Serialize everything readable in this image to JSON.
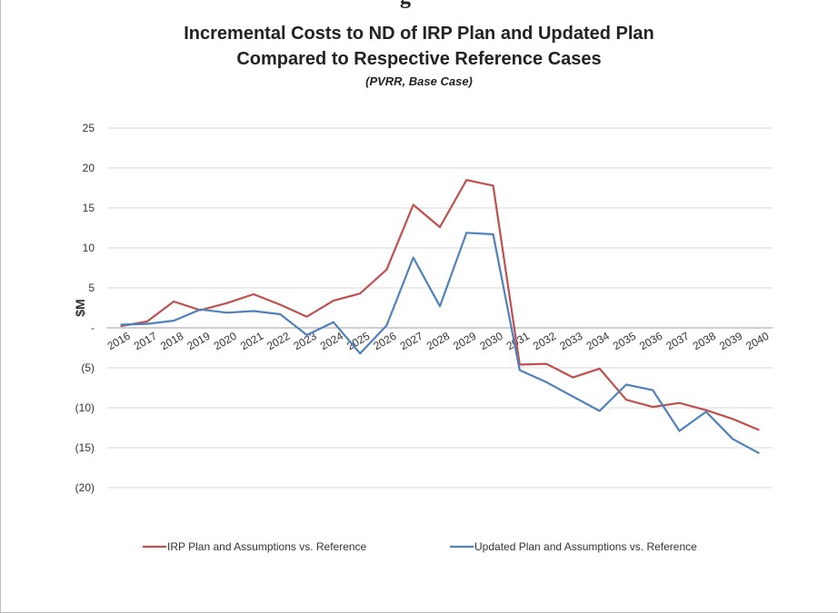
{
  "page": {
    "top_cutoff_text": "g"
  },
  "chart_data": {
    "type": "line",
    "title": "Incremental Costs to ND of IRP Plan and Updated Plan",
    "title_line2": "Compared to Respective Reference Cases",
    "subtitle": "(PVRR, Base Case)",
    "xlabel": "",
    "ylabel": "$M",
    "ylim": [
      -20,
      25
    ],
    "yticks": [
      25,
      20,
      15,
      10,
      5,
      0,
      -5,
      -10,
      -15,
      -20
    ],
    "ytick_labels": [
      "25",
      "20",
      "15",
      "10",
      "5",
      "-",
      "(5)",
      "(10)",
      "(15)",
      "(20)"
    ],
    "grid": true,
    "legend_position": "bottom",
    "categories": [
      "2016",
      "2017",
      "2018",
      "2019",
      "2020",
      "2021",
      "2022",
      "2023",
      "2024",
      "2025",
      "2026",
      "2027",
      "2028",
      "2029",
      "2030",
      "2031",
      "2032",
      "2033",
      "2034",
      "2035",
      "2036",
      "2037",
      "2038",
      "2039",
      "2040"
    ],
    "series": [
      {
        "name": "IRP Plan and Assumptions vs. Reference",
        "color": "#c0504d",
        "values": [
          0.2,
          0.8,
          3.3,
          2.2,
          3.1,
          4.2,
          2.9,
          1.4,
          3.4,
          4.3,
          7.3,
          15.4,
          12.6,
          18.5,
          17.8,
          -4.6,
          -4.5,
          -6.2,
          -5.1,
          -9.0,
          -9.9,
          -9.4,
          -10.3,
          -11.4,
          -12.8
        ]
      },
      {
        "name": "Updated Plan and Assumptions vs. Reference",
        "color": "#4f81bd",
        "values": [
          0.4,
          0.5,
          0.9,
          2.3,
          1.9,
          2.1,
          1.7,
          -0.9,
          0.7,
          -3.2,
          0.3,
          8.8,
          2.7,
          11.9,
          11.7,
          -5.3,
          -6.8,
          -8.6,
          -10.4,
          -7.1,
          -7.8,
          -12.9,
          -10.5,
          -13.9,
          -15.7
        ]
      }
    ]
  }
}
